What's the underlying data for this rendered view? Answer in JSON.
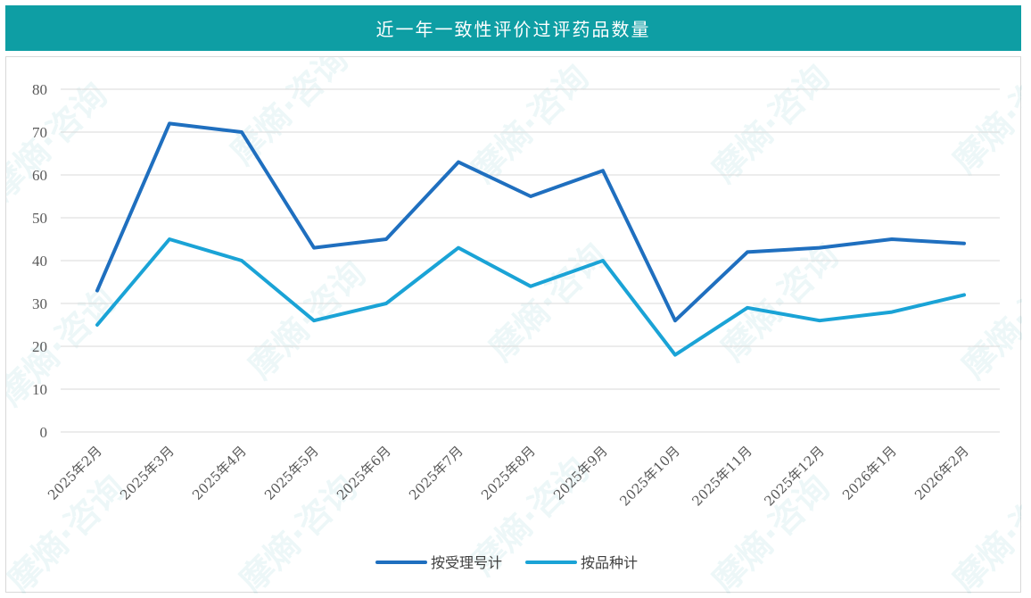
{
  "title": "近一年一致性评价过评药品数量",
  "watermark": "摩熵·咨询",
  "colors": {
    "header_bg": "#0e9ea4",
    "series_1": "#1f6fbf",
    "series_2": "#1aa3d6",
    "grid": "#d9d9d9"
  },
  "chart_data": {
    "type": "line",
    "categories": [
      "2025年2月",
      "2025年3月",
      "2025年4月",
      "2025年5月",
      "2025年6月",
      "2025年7月",
      "2025年8月",
      "2025年9月",
      "2025年10月",
      "2025年11月",
      "2025年12月",
      "2026年1月",
      "2026年2月"
    ],
    "series": [
      {
        "name": "按受理号计",
        "values": [
          33,
          72,
          70,
          43,
          45,
          63,
          55,
          61,
          26,
          42,
          43,
          45,
          44
        ]
      },
      {
        "name": "按品种计",
        "values": [
          25,
          45,
          40,
          26,
          30,
          43,
          34,
          40,
          18,
          29,
          26,
          28,
          32
        ]
      }
    ],
    "ylim": [
      0,
      80
    ],
    "yticks": [
      0,
      10,
      20,
      30,
      40,
      50,
      60,
      70,
      80
    ],
    "grid": true,
    "legend": "bottom"
  }
}
